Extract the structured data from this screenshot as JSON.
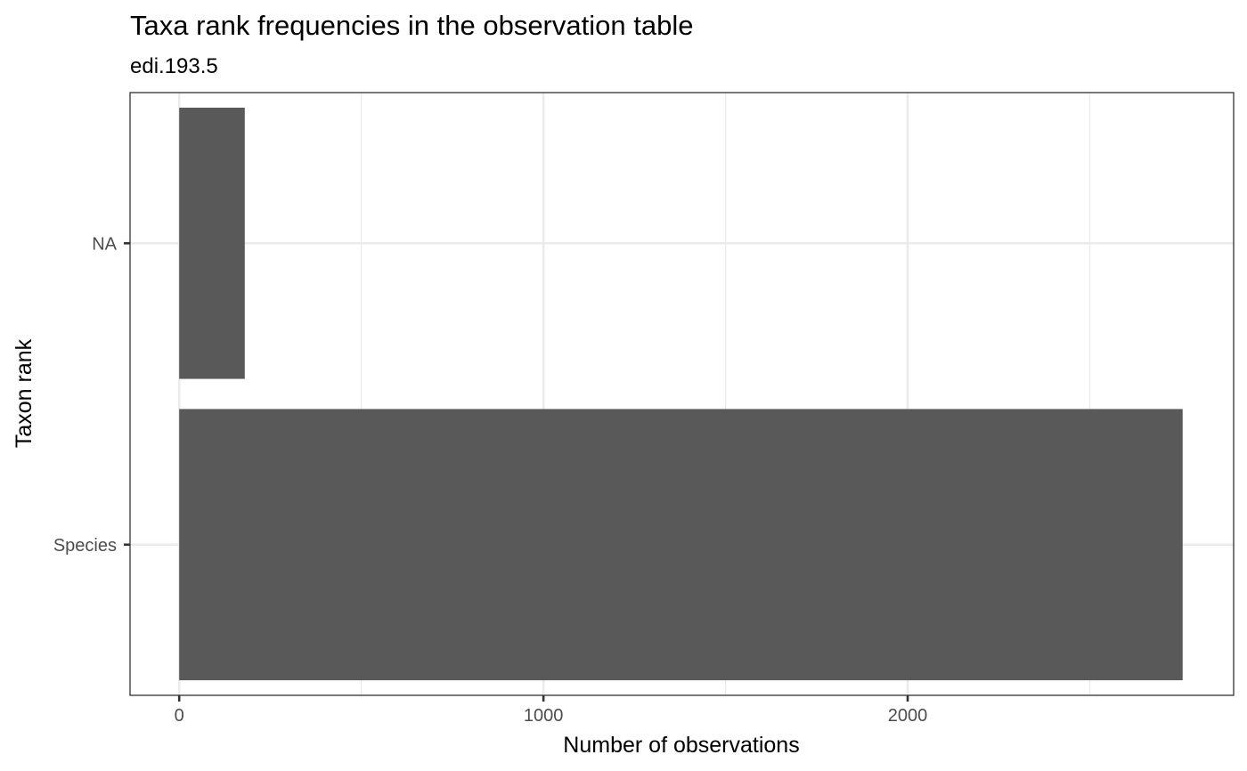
{
  "chart_data": {
    "type": "bar",
    "orientation": "horizontal",
    "title": "Taxa rank frequencies in the observation table",
    "subtitle": "edi.193.5",
    "xlabel": "Number of observations",
    "ylabel": "Taxon rank",
    "categories": [
      "Species",
      "NA"
    ],
    "values": [
      2755,
      180
    ],
    "xlim": [
      -135,
      2895
    ],
    "x_ticks": [
      0,
      1000,
      2000
    ],
    "x_minor_ticks": [
      500,
      1500,
      2500
    ],
    "grid": true,
    "bar_color": "#595959",
    "legend": "none"
  }
}
